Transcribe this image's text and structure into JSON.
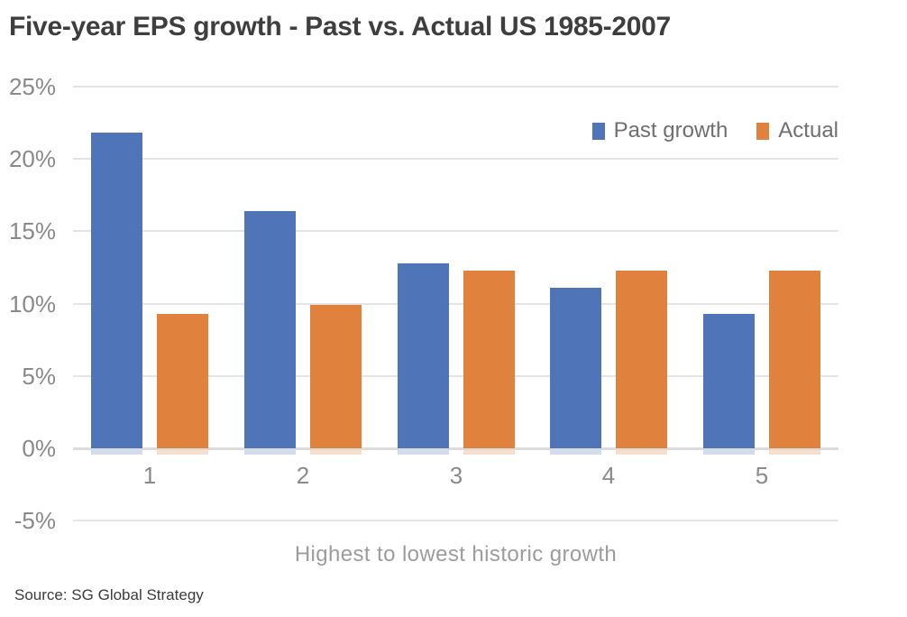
{
  "page": {
    "background": "#ffffff"
  },
  "chart_data": {
    "type": "bar",
    "title": "Five-year EPS growth - Past vs. Actual US 1985-2007",
    "categories": [
      "1",
      "2",
      "3",
      "4",
      "5"
    ],
    "series": [
      {
        "name": "Past growth",
        "color": "#4f74b7",
        "shadow_color": "rgba(79,116,183,0.25)",
        "values": [
          21.8,
          16.4,
          12.8,
          11.1,
          9.3
        ]
      },
      {
        "name": "Actual",
        "color": "#e0813d",
        "shadow_color": "rgba(224,129,61,0.25)",
        "values": [
          9.3,
          9.9,
          12.3,
          12.3,
          12.3
        ]
      }
    ],
    "xlabel": "Highest to lowest historic growth",
    "ylabel": "",
    "ylim": [
      -5,
      25
    ],
    "yticks": [
      {
        "value": 25,
        "label": "25%"
      },
      {
        "value": 20,
        "label": "20%"
      },
      {
        "value": 15,
        "label": "15%"
      },
      {
        "value": 10,
        "label": "10%"
      },
      {
        "value": 5,
        "label": "5%"
      },
      {
        "value": 0,
        "label": "0%"
      },
      {
        "value": -5,
        "label": "-5%"
      }
    ],
    "grid": true,
    "gridline_color": "#e4e4e4",
    "legend_position": "top-right",
    "source": "Source: SG Global Strategy"
  }
}
